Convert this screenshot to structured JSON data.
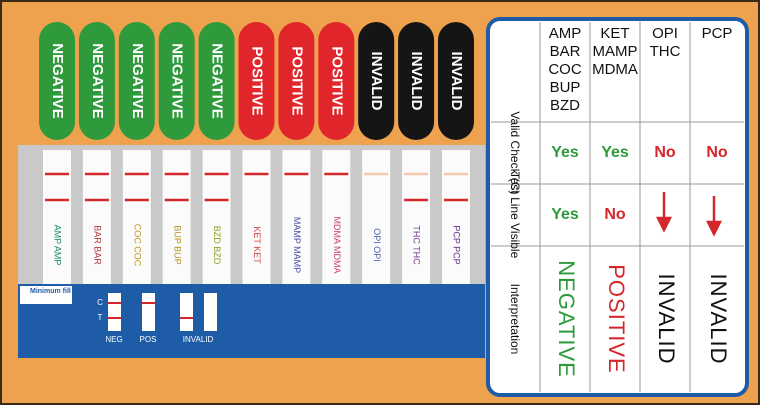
{
  "pills": [
    {
      "label": "NEGATIVE",
      "color": "#2e9a3c"
    },
    {
      "label": "NEGATIVE",
      "color": "#2e9a3c"
    },
    {
      "label": "NEGATIVE",
      "color": "#2e9a3c"
    },
    {
      "label": "NEGATIVE",
      "color": "#2e9a3c"
    },
    {
      "label": "NEGATIVE",
      "color": "#2e9a3c"
    },
    {
      "label": "POSITIVE",
      "color": "#e0262b"
    },
    {
      "label": "POSITIVE",
      "color": "#e0262b"
    },
    {
      "label": "POSITIVE",
      "color": "#e0262b"
    },
    {
      "label": "INVALID",
      "color": "#151515"
    },
    {
      "label": "INVALID",
      "color": "#151515"
    },
    {
      "label": "INVALID",
      "color": "#151515"
    }
  ],
  "strips": [
    {
      "label": "AMP AMP",
      "color": "#1a8a6a"
    },
    {
      "label": "BAR BAR",
      "color": "#b03a3a"
    },
    {
      "label": "COC COC",
      "color": "#c8941e"
    },
    {
      "label": "BUP BUP",
      "color": "#b8901a"
    },
    {
      "label": "BZD BZD",
      "color": "#8aa020"
    },
    {
      "label": "KET KET",
      "color": "#d04040"
    },
    {
      "label": "MAMP MAMP",
      "color": "#4a4aa8"
    },
    {
      "label": "MDMA MDMA",
      "color": "#c84070"
    },
    {
      "label": "OPI OPI",
      "color": "#4a60a8"
    },
    {
      "label": "THC THC",
      "color": "#7a3a90"
    },
    {
      "label": "PCP PCP",
      "color": "#6a2a8a"
    }
  ],
  "fill_note": "Minimum fill volume",
  "legend": {
    "c": "C",
    "t": "T",
    "neg": "NEG",
    "pos": "POS",
    "invalid": "INVALID"
  },
  "table": {
    "columns": [
      [
        "AMP",
        "BAR",
        "COC",
        "BUP",
        "BZD"
      ],
      [
        "KET",
        "MAMP",
        "MDMA"
      ],
      [
        "OPI",
        "THC"
      ],
      [
        "PCP"
      ]
    ],
    "rows": [
      {
        "label": "Valid Check (C)",
        "cells": [
          "Yes",
          "Yes",
          "No",
          "No"
        ]
      },
      {
        "label": "Test Line Visible",
        "cells": [
          "Yes",
          "No"
        ]
      },
      {
        "label": "Interpretation",
        "cells": [
          "NEGATIVE",
          "POSITIVE",
          "INVALID",
          "INVALID"
        ]
      }
    ]
  }
}
